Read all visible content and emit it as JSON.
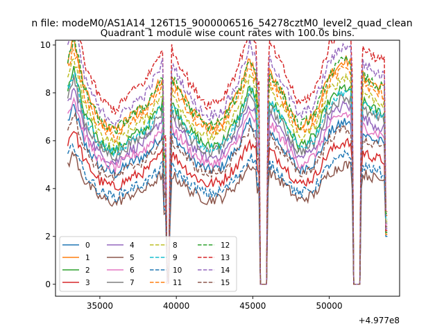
{
  "chart_data": {
    "type": "line",
    "suptitle": "n file: modeM0/AS1A14_126T15_9000006516_54278cztM0_level2_quad_clean",
    "title": "Quadrant 1 module wise count rates with 100.0s bins.",
    "xlabel": "",
    "ylabel": "",
    "offset_text": "+4.977e8",
    "xlim": [
      32100,
      54600
    ],
    "ylim": [
      -0.5,
      10.2
    ],
    "x_ticks": [
      35000,
      40000,
      45000,
      50000
    ],
    "x_tick_labels": [
      "35000",
      "40000",
      "45000",
      "50000"
    ],
    "y_ticks": [
      0,
      2,
      4,
      6,
      8,
      10
    ],
    "y_tick_labels": [
      "0",
      "2",
      "4",
      "6",
      "8",
      "10"
    ],
    "x_range": [
      32900,
      53800
    ],
    "bin_width_s": 100,
    "gaps": [
      {
        "x_start": 45450,
        "x_end": 45900,
        "value": 0
      },
      {
        "x_start": 51600,
        "x_end": 52000,
        "value": 0
      }
    ],
    "dip_center": 39420,
    "legend_position": "lower-left",
    "series": [
      {
        "name": "0",
        "color": "#1f77b4",
        "dash": "solid",
        "level": 5.7
      },
      {
        "name": "1",
        "color": "#ff7f0e",
        "dash": "solid",
        "level": 7.9
      },
      {
        "name": "2",
        "color": "#2ca02c",
        "dash": "solid",
        "level": 6.9
      },
      {
        "name": "3",
        "color": "#d62728",
        "dash": "solid",
        "level": 5.0
      },
      {
        "name": "4",
        "color": "#9467bd",
        "dash": "solid",
        "level": 6.3
      },
      {
        "name": "5",
        "color": "#8c564b",
        "dash": "solid",
        "level": 4.2
      },
      {
        "name": "6",
        "color": "#e377c2",
        "dash": "solid",
        "level": 6.0
      },
      {
        "name": "7",
        "color": "#7f7f7f",
        "dash": "solid",
        "level": 6.6
      },
      {
        "name": "8",
        "color": "#bcbd22",
        "dash": "dashed",
        "level": 7.3
      },
      {
        "name": "9",
        "color": "#17becf",
        "dash": "dashed",
        "level": 6.8
      },
      {
        "name": "10",
        "color": "#1f77b4",
        "dash": "dashed",
        "level": 4.5
      },
      {
        "name": "11",
        "color": "#ff7f0e",
        "dash": "dashed",
        "level": 7.6
      },
      {
        "name": "12",
        "color": "#2ca02c",
        "dash": "dashed",
        "level": 7.9
      },
      {
        "name": "13",
        "color": "#d62728",
        "dash": "dashed",
        "level": 9.0
      },
      {
        "name": "14",
        "color": "#9467bd",
        "dash": "dashed",
        "level": 8.4
      },
      {
        "name": "15",
        "color": "#8c564b",
        "dash": "dashed",
        "level": 5.5
      }
    ]
  }
}
